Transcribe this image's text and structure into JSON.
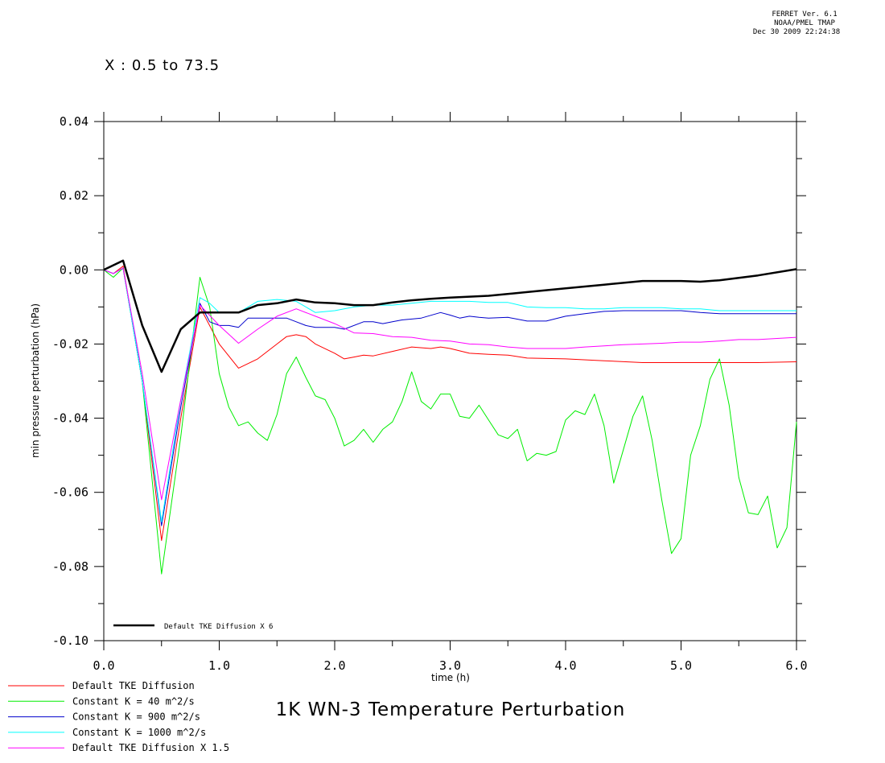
{
  "header": {
    "line1": "FERRET Ver. 6.1",
    "line2": "NOAA/PMEL TMAP",
    "line3": "Dec 30 2009 22:24:38"
  },
  "subtitle": "X : 0.5 to 73.5",
  "chart_data": {
    "type": "line",
    "title": "1K WN-3 Temperature Perturbation",
    "xlabel": "time (h)",
    "ylabel": "min pressure perturbation (hPa)",
    "xlim": [
      0,
      6
    ],
    "ylim": [
      -0.1,
      0.04
    ],
    "x_ticks": [
      "0.0",
      "1.0",
      "2.0",
      "3.0",
      "4.0",
      "5.0",
      "6.0"
    ],
    "y_ticks": [
      "0.04",
      "0.02",
      "0.00",
      "-0.02",
      "-0.04",
      "-0.06",
      "-0.08",
      "-0.10"
    ],
    "grid": false,
    "series": [
      {
        "name": "Default TKE Diffusion",
        "color": "#ff0000",
        "points": [
          [
            0,
            0
          ],
          [
            0.083,
            -0.001
          ],
          [
            0.167,
            0.001
          ],
          [
            0.333,
            -0.03
          ],
          [
            0.5,
            -0.073
          ],
          [
            0.667,
            -0.04
          ],
          [
            0.833,
            -0.01
          ],
          [
            1.0,
            -0.02
          ],
          [
            1.167,
            -0.0265
          ],
          [
            1.333,
            -0.024
          ],
          [
            1.5,
            -0.02
          ],
          [
            1.583,
            -0.018
          ],
          [
            1.667,
            -0.0175
          ],
          [
            1.75,
            -0.018
          ],
          [
            1.833,
            -0.02
          ],
          [
            2.0,
            -0.0225
          ],
          [
            2.083,
            -0.024
          ],
          [
            2.167,
            -0.0235
          ],
          [
            2.25,
            -0.023
          ],
          [
            2.333,
            -0.0232
          ],
          [
            2.5,
            -0.022
          ],
          [
            2.667,
            -0.0208
          ],
          [
            2.833,
            -0.0212
          ],
          [
            2.917,
            -0.0208
          ],
          [
            3.0,
            -0.0212
          ],
          [
            3.167,
            -0.0225
          ],
          [
            3.333,
            -0.0228
          ],
          [
            3.5,
            -0.023
          ],
          [
            3.667,
            -0.0238
          ],
          [
            4.0,
            -0.024
          ],
          [
            4.333,
            -0.0245
          ],
          [
            4.667,
            -0.025
          ],
          [
            5.0,
            -0.025
          ],
          [
            5.333,
            -0.025
          ],
          [
            5.667,
            -0.025
          ],
          [
            6.0,
            -0.0248
          ]
        ]
      },
      {
        "name": "Constant K = 40 m^2/s",
        "color": "#00ee00",
        "points": [
          [
            0,
            0
          ],
          [
            0.083,
            -0.002
          ],
          [
            0.167,
            0.0005
          ],
          [
            0.333,
            -0.03
          ],
          [
            0.5,
            -0.082
          ],
          [
            0.667,
            -0.045
          ],
          [
            0.833,
            -0.002
          ],
          [
            0.917,
            -0.01
          ],
          [
            1.0,
            -0.028
          ],
          [
            1.083,
            -0.037
          ],
          [
            1.167,
            -0.042
          ],
          [
            1.25,
            -0.041
          ],
          [
            1.333,
            -0.044
          ],
          [
            1.417,
            -0.046
          ],
          [
            1.5,
            -0.039
          ],
          [
            1.583,
            -0.028
          ],
          [
            1.667,
            -0.0235
          ],
          [
            1.75,
            -0.029
          ],
          [
            1.833,
            -0.034
          ],
          [
            1.917,
            -0.035
          ],
          [
            2.0,
            -0.04
          ],
          [
            2.083,
            -0.0475
          ],
          [
            2.167,
            -0.046
          ],
          [
            2.25,
            -0.043
          ],
          [
            2.333,
            -0.0465
          ],
          [
            2.417,
            -0.043
          ],
          [
            2.5,
            -0.041
          ],
          [
            2.583,
            -0.0355
          ],
          [
            2.667,
            -0.0275
          ],
          [
            2.75,
            -0.0355
          ],
          [
            2.833,
            -0.0375
          ],
          [
            2.917,
            -0.0335
          ],
          [
            3.0,
            -0.0335
          ],
          [
            3.083,
            -0.0395
          ],
          [
            3.167,
            -0.04
          ],
          [
            3.25,
            -0.0365
          ],
          [
            3.333,
            -0.0405
          ],
          [
            3.417,
            -0.0445
          ],
          [
            3.5,
            -0.0455
          ],
          [
            3.583,
            -0.043
          ],
          [
            3.667,
            -0.0515
          ],
          [
            3.75,
            -0.0495
          ],
          [
            3.833,
            -0.05
          ],
          [
            3.917,
            -0.049
          ],
          [
            4.0,
            -0.0405
          ],
          [
            4.083,
            -0.038
          ],
          [
            4.167,
            -0.039
          ],
          [
            4.25,
            -0.0335
          ],
          [
            4.333,
            -0.042
          ],
          [
            4.417,
            -0.0575
          ],
          [
            4.5,
            -0.0485
          ],
          [
            4.583,
            -0.0395
          ],
          [
            4.667,
            -0.034
          ],
          [
            4.75,
            -0.046
          ],
          [
            4.833,
            -0.062
          ],
          [
            4.917,
            -0.0765
          ],
          [
            5.0,
            -0.0725
          ],
          [
            5.083,
            -0.05
          ],
          [
            5.167,
            -0.042
          ],
          [
            5.25,
            -0.0295
          ],
          [
            5.333,
            -0.024
          ],
          [
            5.417,
            -0.0365
          ],
          [
            5.5,
            -0.056
          ],
          [
            5.583,
            -0.0655
          ],
          [
            5.667,
            -0.066
          ],
          [
            5.75,
            -0.061
          ],
          [
            5.833,
            -0.075
          ],
          [
            5.917,
            -0.0695
          ],
          [
            6.0,
            -0.041
          ]
        ]
      },
      {
        "name": "Constant K = 900 m^2/s",
        "color": "#0000cc",
        "points": [
          [
            0,
            0
          ],
          [
            0.083,
            -0.001
          ],
          [
            0.167,
            0.0005
          ],
          [
            0.333,
            -0.03
          ],
          [
            0.5,
            -0.069
          ],
          [
            0.667,
            -0.037
          ],
          [
            0.833,
            -0.009
          ],
          [
            0.917,
            -0.014
          ],
          [
            1.0,
            -0.015
          ],
          [
            1.083,
            -0.015
          ],
          [
            1.167,
            -0.0155
          ],
          [
            1.25,
            -0.013
          ],
          [
            1.333,
            -0.013
          ],
          [
            1.5,
            -0.013
          ],
          [
            1.583,
            -0.013
          ],
          [
            1.667,
            -0.014
          ],
          [
            1.75,
            -0.015
          ],
          [
            1.833,
            -0.0155
          ],
          [
            2.0,
            -0.0155
          ],
          [
            2.083,
            -0.016
          ],
          [
            2.25,
            -0.014
          ],
          [
            2.333,
            -0.014
          ],
          [
            2.417,
            -0.0145
          ],
          [
            2.5,
            -0.014
          ],
          [
            2.583,
            -0.0135
          ],
          [
            2.75,
            -0.013
          ],
          [
            2.917,
            -0.0115
          ],
          [
            3.0,
            -0.0122
          ],
          [
            3.083,
            -0.013
          ],
          [
            3.167,
            -0.0125
          ],
          [
            3.25,
            -0.0128
          ],
          [
            3.333,
            -0.013
          ],
          [
            3.5,
            -0.0128
          ],
          [
            3.667,
            -0.0138
          ],
          [
            3.833,
            -0.0138
          ],
          [
            4.0,
            -0.0125
          ],
          [
            4.167,
            -0.0118
          ],
          [
            4.333,
            -0.0112
          ],
          [
            4.5,
            -0.011
          ],
          [
            4.667,
            -0.011
          ],
          [
            5.0,
            -0.011
          ],
          [
            5.167,
            -0.0115
          ],
          [
            5.333,
            -0.0118
          ],
          [
            5.667,
            -0.0118
          ],
          [
            6.0,
            -0.0118
          ]
        ]
      },
      {
        "name": "Constant K = 1000 m^2/s",
        "color": "#00ffff",
        "points": [
          [
            0,
            0
          ],
          [
            0.083,
            -0.001
          ],
          [
            0.167,
            0.0005
          ],
          [
            0.333,
            -0.03
          ],
          [
            0.5,
            -0.068
          ],
          [
            0.667,
            -0.035
          ],
          [
            0.833,
            -0.0075
          ],
          [
            0.917,
            -0.009
          ],
          [
            1.0,
            -0.0115
          ],
          [
            1.167,
            -0.0115
          ],
          [
            1.333,
            -0.0085
          ],
          [
            1.5,
            -0.008
          ],
          [
            1.667,
            -0.0085
          ],
          [
            1.833,
            -0.0115
          ],
          [
            2.0,
            -0.011
          ],
          [
            2.167,
            -0.01
          ],
          [
            2.333,
            -0.0095
          ],
          [
            2.5,
            -0.0095
          ],
          [
            2.667,
            -0.009
          ],
          [
            2.833,
            -0.0085
          ],
          [
            3.0,
            -0.0085
          ],
          [
            3.167,
            -0.0085
          ],
          [
            3.333,
            -0.0088
          ],
          [
            3.5,
            -0.0088
          ],
          [
            3.667,
            -0.01
          ],
          [
            3.833,
            -0.0102
          ],
          [
            4.0,
            -0.0102
          ],
          [
            4.167,
            -0.0105
          ],
          [
            4.333,
            -0.0105
          ],
          [
            4.5,
            -0.0102
          ],
          [
            4.667,
            -0.0102
          ],
          [
            4.833,
            -0.0102
          ],
          [
            5.0,
            -0.0105
          ],
          [
            5.167,
            -0.0105
          ],
          [
            5.333,
            -0.011
          ],
          [
            5.5,
            -0.011
          ],
          [
            5.667,
            -0.011
          ],
          [
            5.833,
            -0.011
          ],
          [
            6.0,
            -0.011
          ]
        ]
      },
      {
        "name": "Default TKE Diffusion X 1.5",
        "color": "#ff00ff",
        "points": [
          [
            0,
            0
          ],
          [
            0.083,
            -0.001
          ],
          [
            0.167,
            0.0005
          ],
          [
            0.333,
            -0.028
          ],
          [
            0.5,
            -0.062
          ],
          [
            0.667,
            -0.035
          ],
          [
            0.833,
            -0.0095
          ],
          [
            1.0,
            -0.015
          ],
          [
            1.167,
            -0.0198
          ],
          [
            1.333,
            -0.016
          ],
          [
            1.5,
            -0.0125
          ],
          [
            1.667,
            -0.0105
          ],
          [
            1.833,
            -0.0125
          ],
          [
            2.0,
            -0.0145
          ],
          [
            2.167,
            -0.017
          ],
          [
            2.333,
            -0.0172
          ],
          [
            2.5,
            -0.018
          ],
          [
            2.667,
            -0.0182
          ],
          [
            2.833,
            -0.019
          ],
          [
            3.0,
            -0.0192
          ],
          [
            3.167,
            -0.02
          ],
          [
            3.333,
            -0.0202
          ],
          [
            3.5,
            -0.0208
          ],
          [
            3.667,
            -0.0212
          ],
          [
            3.833,
            -0.0212
          ],
          [
            4.0,
            -0.0212
          ],
          [
            4.167,
            -0.0208
          ],
          [
            4.333,
            -0.0205
          ],
          [
            4.5,
            -0.0202
          ],
          [
            4.667,
            -0.02
          ],
          [
            4.833,
            -0.0198
          ],
          [
            5.0,
            -0.0195
          ],
          [
            5.167,
            -0.0195
          ],
          [
            5.333,
            -0.0192
          ],
          [
            5.5,
            -0.0188
          ],
          [
            5.667,
            -0.0188
          ],
          [
            5.833,
            -0.0185
          ],
          [
            6.0,
            -0.0182
          ]
        ]
      },
      {
        "name": "Default TKE Diffusion X 6",
        "color": "#000000",
        "points": [
          [
            0,
            0
          ],
          [
            0.167,
            0.0025
          ],
          [
            0.333,
            -0.015
          ],
          [
            0.5,
            -0.0275
          ],
          [
            0.667,
            -0.016
          ],
          [
            0.833,
            -0.0115
          ],
          [
            1.0,
            -0.0115
          ],
          [
            1.167,
            -0.0115
          ],
          [
            1.333,
            -0.0095
          ],
          [
            1.5,
            -0.009
          ],
          [
            1.667,
            -0.008
          ],
          [
            1.833,
            -0.0088
          ],
          [
            2.0,
            -0.009
          ],
          [
            2.167,
            -0.0095
          ],
          [
            2.333,
            -0.0095
          ],
          [
            2.5,
            -0.0088
          ],
          [
            2.667,
            -0.0082
          ],
          [
            2.833,
            -0.0078
          ],
          [
            3.0,
            -0.0075
          ],
          [
            3.333,
            -0.007
          ],
          [
            3.667,
            -0.006
          ],
          [
            4.0,
            -0.005
          ],
          [
            4.333,
            -0.004
          ],
          [
            4.667,
            -0.003
          ],
          [
            5.0,
            -0.003
          ],
          [
            5.167,
            -0.0032
          ],
          [
            5.333,
            -0.0028
          ],
          [
            5.667,
            -0.0015
          ],
          [
            6.0,
            0.0002
          ]
        ]
      }
    ]
  }
}
